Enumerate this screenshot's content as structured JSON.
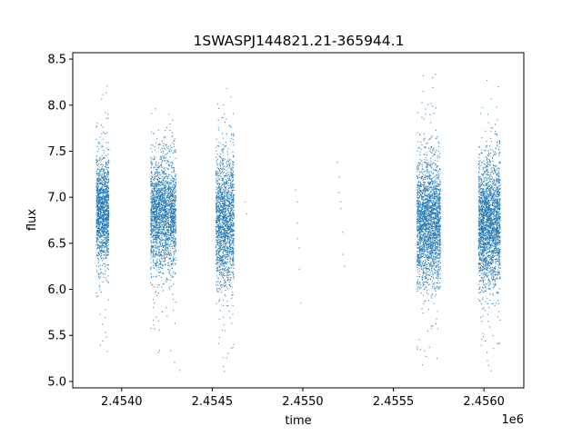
{
  "chart_data": {
    "type": "scatter",
    "title": "1SWASPJ144821.21-365944.1",
    "xlabel": "time",
    "ylabel": "flux",
    "x_offset_label": "1e6",
    "xlim": [
      2.45373,
      2.45622
    ],
    "ylim": [
      4.93,
      8.57
    ],
    "x_tick_labels": [
      "2.4540",
      "2.4545",
      "2.4550",
      "2.4555",
      "2.4560"
    ],
    "x_ticks": [
      2.454,
      2.4545,
      2.455,
      2.4555,
      2.456
    ],
    "y_tick_labels": [
      "5.0",
      "5.5",
      "6.0",
      "6.5",
      "7.0",
      "7.5",
      "8.0",
      "8.5"
    ],
    "y_ticks": [
      5.0,
      5.5,
      6.0,
      6.5,
      7.0,
      7.5,
      8.0,
      8.5
    ],
    "grid": false,
    "series": [
      {
        "color": "#1f77b4",
        "clusters": [
          {
            "x_range": [
              2.45386,
              2.45393
            ],
            "center": 6.85,
            "spread": 0.28,
            "min": 5.1,
            "max": 8.3,
            "n": 1400
          },
          {
            "x_range": [
              2.45416,
              2.4543
            ],
            "center": 6.82,
            "spread": 0.3,
            "min": 5.2,
            "max": 8.05,
            "n": 2200
          },
          {
            "x_range": [
              2.45452,
              2.45462
            ],
            "center": 6.75,
            "spread": 0.35,
            "min": 5.1,
            "max": 8.45,
            "n": 1700
          },
          {
            "x_range": [
              2.45563,
              2.45576
            ],
            "center": 6.72,
            "spread": 0.33,
            "min": 5.15,
            "max": 8.35,
            "n": 2400
          },
          {
            "x_range": [
              2.45597,
              2.45609
            ],
            "center": 6.72,
            "spread": 0.33,
            "min": 5.1,
            "max": 8.4,
            "n": 2400
          }
        ],
        "scattered_points": [
          {
            "x": 2.45496,
            "y": 7.08
          },
          {
            "x": 2.45497,
            "y": 6.95
          },
          {
            "x": 2.45497,
            "y": 6.72
          },
          {
            "x": 2.45497,
            "y": 6.55
          },
          {
            "x": 2.45498,
            "y": 6.45
          },
          {
            "x": 2.45498,
            "y": 6.22
          },
          {
            "x": 2.45499,
            "y": 5.85
          },
          {
            "x": 2.45519,
            "y": 7.38
          },
          {
            "x": 2.4552,
            "y": 7.22
          },
          {
            "x": 2.4552,
            "y": 7.05
          },
          {
            "x": 2.45521,
            "y": 6.95
          },
          {
            "x": 2.45521,
            "y": 6.88
          },
          {
            "x": 2.45522,
            "y": 6.62
          },
          {
            "x": 2.45522,
            "y": 6.38
          },
          {
            "x": 2.45523,
            "y": 6.25
          },
          {
            "x": 2.45468,
            "y": 6.95
          },
          {
            "x": 2.45469,
            "y": 6.82
          },
          {
            "x": 2.45432,
            "y": 5.12
          }
        ]
      }
    ]
  }
}
